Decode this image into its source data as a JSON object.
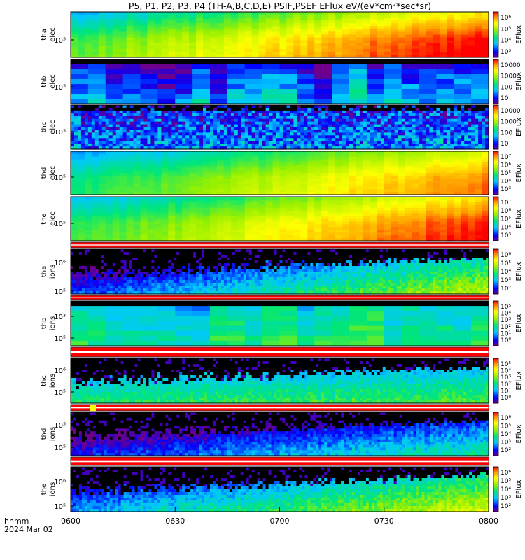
{
  "title": "P5, P1, P2, P3, P4 (TH-A,B,C,D,E) PSIF,PSEF EFlux eV/(eV*cm²*sec*sr)",
  "time_axis": {
    "row_label_1": "hhmm",
    "row_label_2": "2024 Mar 02",
    "ticks": [
      "0600",
      "0630",
      "0700",
      "0730",
      "0800"
    ]
  },
  "colorbar_unit": "EFlux",
  "colors": {
    "status_bar_red": "#ff0000",
    "status_bar_yellow": "#ffff00",
    "no_data": "#000000"
  },
  "chart_data": [
    {
      "type": "heatmap",
      "probe": "tha",
      "species": "elec",
      "ylabel": [
        "tha",
        "elec"
      ],
      "ytick": "10⁵",
      "cbar_ticks": [
        "10⁶",
        "10⁵",
        "10⁴",
        "10³"
      ],
      "cbar_range": [
        3,
        6.5
      ],
      "level": {
        "start": 4.5,
        "end": 6.3
      },
      "pattern": "smooth"
    },
    {
      "type": "heatmap",
      "probe": "thb",
      "species": "elec",
      "ylabel": [
        "thb",
        "elec"
      ],
      "ytick": "10⁵",
      "cbar_ticks": [
        "10000",
        "1000",
        "100",
        "10"
      ],
      "cbar_range": [
        1,
        4.5
      ],
      "level": {
        "start": 1.5,
        "end": 1.7
      },
      "pattern": "blocky"
    },
    {
      "type": "heatmap",
      "probe": "thc",
      "species": "elec",
      "ylabel": [
        "thc",
        "elec"
      ],
      "ytick": "10⁵",
      "cbar_ticks": [
        "10000",
        "1000",
        "100",
        "10"
      ],
      "cbar_range": [
        1,
        4.5
      ],
      "level": {
        "start": 1.8,
        "end": 1.9
      },
      "pattern": "noisy"
    },
    {
      "type": "heatmap",
      "probe": "thd",
      "species": "elec",
      "ylabel": [
        "thd",
        "elec"
      ],
      "ytick": "10⁵",
      "cbar_ticks": [
        "10⁷",
        "10⁶",
        "10⁵",
        "10⁴",
        "10³"
      ],
      "cbar_range": [
        3,
        7.3
      ],
      "level": {
        "start": 4.5,
        "end": 6.6
      },
      "pattern": "smooth"
    },
    {
      "type": "heatmap",
      "probe": "the",
      "species": "elec",
      "ylabel": [
        "the",
        "elec"
      ],
      "ytick": "10⁵",
      "cbar_ticks": [
        "10⁷",
        "10⁶",
        "10⁵",
        "10⁴",
        "10³"
      ],
      "cbar_range": [
        3,
        7.3
      ],
      "level": {
        "start": 4.7,
        "end": 7.0
      },
      "pattern": "smooth"
    },
    {
      "type": "heatmap",
      "probe": "tha",
      "species": "ions",
      "ylabel": [
        "tha",
        "ions"
      ],
      "ytick": "10⁵",
      "ytick_upper": "10⁶",
      "cbar_ticks": [
        "10⁶",
        "10⁵",
        "10⁴",
        "10³",
        "10²"
      ],
      "cbar_range": [
        2,
        6.5
      ],
      "level": {
        "start": 2.8,
        "end": 5.0
      },
      "pattern": "ions"
    },
    {
      "type": "heatmap",
      "probe": "thb",
      "species": "ions",
      "ylabel": [
        "thb",
        "ions"
      ],
      "ytick": "10⁵",
      "ytick_upper": "10³",
      "cbar_ticks": [
        "10⁵",
        "10⁴",
        "10³",
        "10²",
        "10¹",
        "10⁰"
      ],
      "cbar_range": [
        0,
        5.3
      ],
      "level": {
        "start": 1.8,
        "end": 2.3
      },
      "pattern": "blocky"
    },
    {
      "type": "heatmap",
      "probe": "thc",
      "species": "ions",
      "ylabel": [
        "thc",
        "ions"
      ],
      "ytick": "10⁵",
      "ytick_upper": "10⁶",
      "cbar_ticks": [
        "10⁵",
        "10⁴",
        "10³",
        "10²",
        "10¹",
        "10⁰"
      ],
      "cbar_range": [
        0,
        5.3
      ],
      "level": {
        "start": 2.5,
        "end": 2.8
      },
      "pattern": "ions"
    },
    {
      "type": "heatmap",
      "probe": "thd",
      "species": "ions",
      "ylabel": [
        "thd",
        "ions"
      ],
      "ytick": "10⁵",
      "ytick_upper": "10⁵",
      "cbar_ticks": [
        "10⁶",
        "10⁵",
        "10⁴",
        "10³",
        "10²"
      ],
      "cbar_range": [
        2,
        6.5
      ],
      "level": {
        "start": 2.6,
        "end": 4.0
      },
      "pattern": "ions"
    },
    {
      "type": "heatmap",
      "probe": "the",
      "species": "ions",
      "ylabel": [
        "the",
        "ions"
      ],
      "ytick": "10⁵",
      "ytick_upper": "10⁶",
      "cbar_ticks": [
        "10⁶",
        "10⁵",
        "10⁴",
        "10³",
        "10²"
      ],
      "cbar_range": [
        2,
        6.5
      ],
      "level": {
        "start": 3.2,
        "end": 5.2
      },
      "pattern": "ions"
    }
  ]
}
